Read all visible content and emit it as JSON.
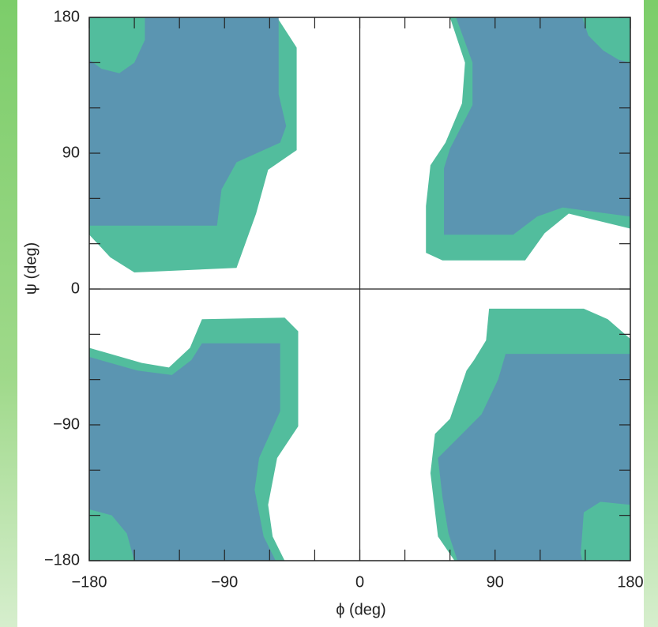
{
  "chart_data": {
    "type": "region",
    "x_label": "ϕ (deg)",
    "y_label": "ψ (deg)",
    "xlim": [
      -180,
      180
    ],
    "ylim": [
      -180,
      180
    ],
    "xticks": [
      {
        "value": -180,
        "label": "−180"
      },
      {
        "value": -90,
        "label": "−90"
      },
      0,
      90,
      180
    ],
    "yticks": [
      {
        "value": -180,
        "label": "−180"
      },
      {
        "value": -90,
        "label": "−90"
      },
      0,
      90,
      180
    ],
    "xminorticks": [
      -150,
      -120,
      -60,
      -30,
      30,
      60,
      120,
      150
    ],
    "yminorticks": [
      -150,
      -120,
      -60,
      -30,
      30,
      60,
      120,
      150
    ],
    "regions": [
      {
        "color": "#52bd9d",
        "x": [
          -180,
          -55,
          -42,
          -42,
          -61,
          -69,
          -82,
          -150,
          -166,
          -180
        ],
        "y": [
          180,
          180,
          160,
          92,
          79,
          50,
          14,
          11,
          21,
          36
        ]
      },
      {
        "color": "#52bd9d",
        "x": [
          60,
          70,
          68,
          57,
          47,
          44,
          44,
          55,
          110,
          123,
          139,
          180,
          180
        ],
        "y": [
          180,
          150,
          123,
          97,
          82,
          55,
          24,
          19,
          19,
          37,
          50,
          40,
          180
        ]
      },
      {
        "color": "#52bd9d",
        "x": [
          -180,
          -145,
          -127,
          -113,
          -105,
          -50,
          -41,
          -41,
          -55,
          -61,
          -58,
          -50,
          -180
        ],
        "y": [
          -39,
          -49,
          -52,
          -39,
          -20,
          -19,
          -28,
          -91,
          -112,
          -143,
          -164,
          -180,
          -180
        ]
      },
      {
        "color": "#52bd9d",
        "x": [
          86,
          149,
          165,
          180,
          180,
          63,
          52,
          47,
          50,
          60,
          71,
          76,
          84
        ],
        "y": [
          -13,
          -13,
          -20,
          -33,
          -180,
          -180,
          -164,
          -122,
          -96,
          -86,
          -54,
          -47,
          -34
        ]
      },
      {
        "color": "#5b95b1",
        "x": [
          -180,
          -54,
          -54,
          -49,
          -53,
          -82,
          -92,
          -95,
          -180
        ],
        "y": [
          180,
          180,
          129,
          108,
          97,
          84,
          66,
          42,
          42
        ]
      },
      {
        "color": "#5b95b1",
        "x": [
          64,
          75,
          75,
          60,
          56,
          56,
          102,
          118,
          135,
          180,
          180
        ],
        "y": [
          180,
          150,
          122,
          93,
          80,
          36,
          36,
          48,
          54,
          48,
          180
        ]
      },
      {
        "color": "#5b95b1",
        "x": [
          -180,
          -148,
          -125,
          -112,
          -105,
          -53,
          -53,
          -67,
          -70,
          -64,
          -56,
          -180
        ],
        "y": [
          -45,
          -54,
          -57,
          -47,
          -36,
          -36,
          -81,
          -112,
          -133,
          -164,
          -180,
          -180
        ]
      },
      {
        "color": "#5b95b1",
        "x": [
          97,
          180,
          180,
          65,
          59,
          55,
          52,
          65,
          81,
          92
        ],
        "y": [
          -43,
          -43,
          -180,
          -180,
          -162,
          -138,
          -112,
          -99,
          -83,
          -60
        ]
      },
      {
        "color": "#52bd9d",
        "x": [
          -180,
          -143,
          -143,
          -150,
          -160,
          -172,
          -180
        ],
        "y": [
          180,
          180,
          165,
          150,
          143,
          146,
          152
        ]
      },
      {
        "color": "#52bd9d",
        "x": [
          148,
          152,
          162,
          172,
          180,
          180
        ],
        "y": [
          180,
          168,
          158,
          152,
          150,
          180
        ]
      },
      {
        "color": "#52bd9d",
        "x": [
          -180,
          -165,
          -155,
          -150,
          -180
        ],
        "y": [
          -146,
          -150,
          -162,
          -180,
          -180
        ]
      },
      {
        "color": "#52bd9d",
        "x": [
          147,
          149,
          160,
          180,
          180,
          148
        ],
        "y": [
          -175,
          -148,
          -141,
          -143,
          -180,
          -180
        ]
      }
    ]
  }
}
